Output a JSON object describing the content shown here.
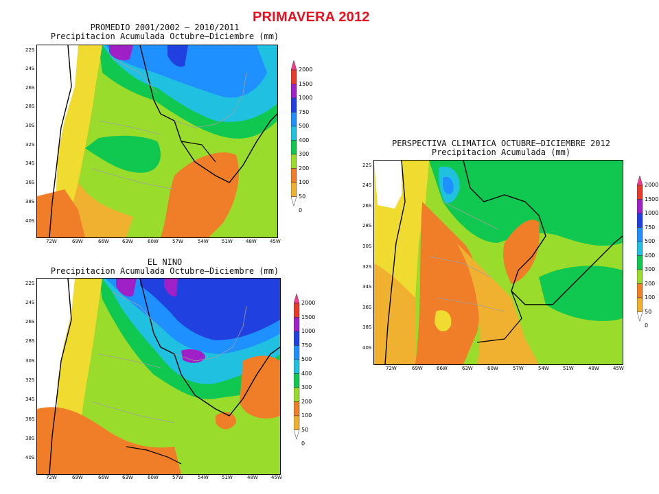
{
  "main_title": "PRIMAVERA 2012",
  "panels": [
    {
      "id": "promedio",
      "title_line1": "PROMEDIO 2001/2002 – 2010/2011",
      "title_line2": "Precipitacion Acumulada Octubre–Diciembre (mm)"
    },
    {
      "id": "nino",
      "title_line1": "EL NINO",
      "title_line2": "Precipitacion Acumulada Octubre–Diciembre (mm)"
    },
    {
      "id": "perspectiva",
      "title_line1": "PERSPECTIVA CLIMATICA OCTUBRE–DICIEMBRE 2012",
      "title_line2": "Precipitacion Acumulada (mm)"
    }
  ],
  "lat_labels": [
    "22S",
    "24S",
    "26S",
    "28S",
    "30S",
    "32S",
    "34S",
    "36S",
    "38S",
    "40S"
  ],
  "lon_labels": [
    "72W",
    "69W",
    "66W",
    "63W",
    "60W",
    "57W",
    "54W",
    "51W",
    "48W",
    "45W"
  ],
  "colorbar": {
    "levels": [
      "2000",
      "1500",
      "1000",
      "750",
      "500",
      "400",
      "300",
      "200",
      "100",
      "50",
      "0"
    ],
    "colors": [
      "#ff3a8c",
      "#e63a2a",
      "#a020c8",
      "#2040e0",
      "#1e90ff",
      "#20c0e0",
      "#10c850",
      "#9adc2c",
      "#f07d28",
      "#f0b030",
      "#f0dc30"
    ]
  },
  "colors": {
    "title": "#e8101e",
    "border_black": "#000000",
    "border_gray": "#a0a0a0"
  }
}
